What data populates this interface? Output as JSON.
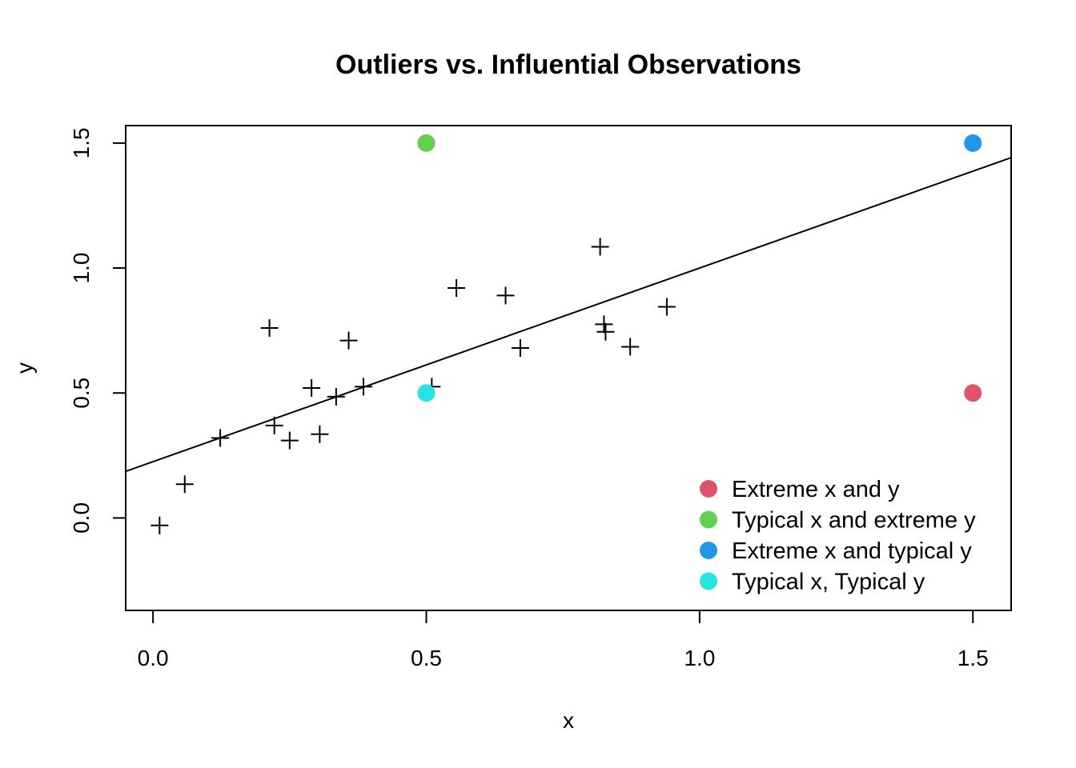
{
  "chart_data": {
    "type": "scatter",
    "title": "Outliers vs. Influential Observations",
    "xlabel": "x",
    "ylabel": "y",
    "xlim": [
      -0.05,
      1.57
    ],
    "ylim": [
      -0.37,
      1.57
    ],
    "x_ticks": [
      0.0,
      0.5,
      1.0,
      1.5
    ],
    "x_tick_labels": [
      "0.0",
      "0.5",
      "1.0",
      "1.5"
    ],
    "y_ticks": [
      0.0,
      0.5,
      1.0,
      1.5
    ],
    "y_tick_labels": [
      "0.0",
      "0.5",
      "1.0",
      "1.5"
    ],
    "grid": false,
    "legend_position": "bottom-right",
    "series": [
      {
        "marker": "plus",
        "color": "#000000",
        "points": [
          [
            0.012,
            -0.03
          ],
          [
            0.058,
            0.135
          ],
          [
            0.123,
            0.32
          ],
          [
            0.213,
            0.76
          ],
          [
            0.222,
            0.37
          ],
          [
            0.25,
            0.31
          ],
          [
            0.29,
            0.52
          ],
          [
            0.305,
            0.335
          ],
          [
            0.335,
            0.485
          ],
          [
            0.358,
            0.71
          ],
          [
            0.385,
            0.525
          ],
          [
            0.51,
            0.525
          ],
          [
            0.555,
            0.92
          ],
          [
            0.645,
            0.89
          ],
          [
            0.672,
            0.68
          ],
          [
            0.818,
            1.085
          ],
          [
            0.825,
            0.775
          ],
          [
            0.828,
            0.745
          ],
          [
            0.873,
            0.685
          ],
          [
            0.94,
            0.845
          ]
        ]
      },
      {
        "name": "Extreme x and y",
        "marker": "dot",
        "color": "#DF536B",
        "points": [
          [
            1.5,
            0.5
          ]
        ]
      },
      {
        "name": "Typical x and extreme y",
        "marker": "dot",
        "color": "#61D04F",
        "points": [
          [
            0.5,
            1.5
          ]
        ]
      },
      {
        "name": "Extreme x and typical y",
        "marker": "dot",
        "color": "#2297E6",
        "points": [
          [
            1.5,
            1.5
          ]
        ]
      },
      {
        "name": "Typical x, Typical y",
        "marker": "dot",
        "color": "#28E2E5",
        "points": [
          [
            0.5,
            0.5
          ]
        ]
      }
    ],
    "regression_line": {
      "intercept": 0.225,
      "slope": 0.775,
      "color": "#000000"
    }
  }
}
